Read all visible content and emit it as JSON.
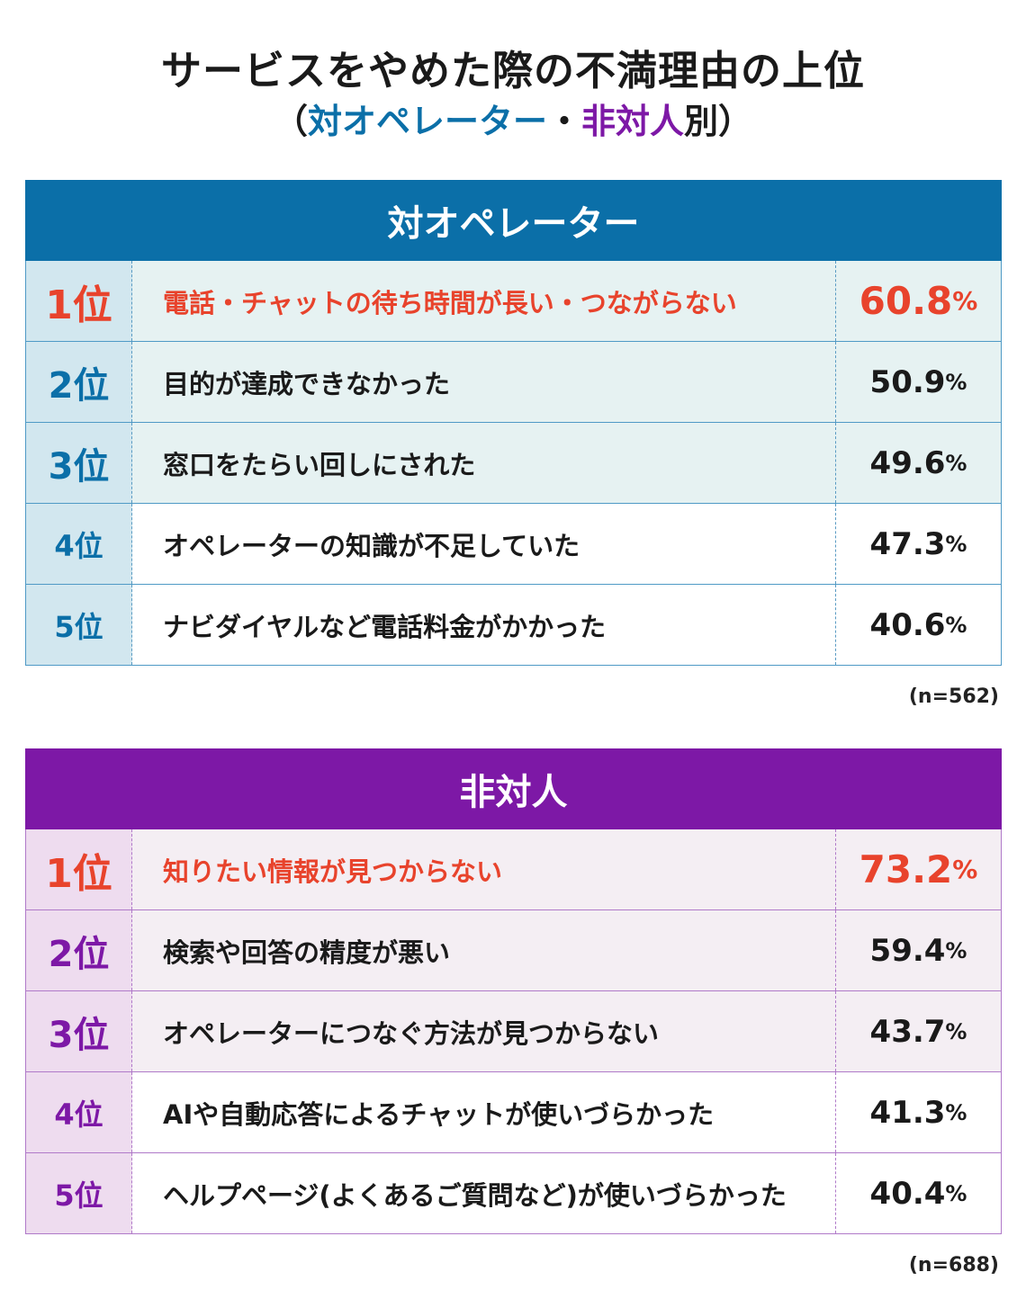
{
  "title": "サービスをやめた際の不満理由の上位",
  "subtitle": {
    "open": "（",
    "part1": "対オペレーター",
    "sep": "・",
    "part2": "非対人",
    "suffix": "別）"
  },
  "colors": {
    "operator": "#0b6fa8",
    "non_person": "#7d18a6",
    "highlight": "#e8432c"
  },
  "chart_data": [
    {
      "type": "table",
      "title": "対オペレーター",
      "columns": [
        "rank",
        "reason",
        "percent"
      ],
      "rows": [
        {
          "rank": "1位",
          "label": "電話・チャットの待ち時間が長い・つながらない",
          "value": 60.8
        },
        {
          "rank": "2位",
          "label": "目的が達成できなかった",
          "value": 50.9
        },
        {
          "rank": "3位",
          "label": "窓口をたらい回しにされた",
          "value": 49.6
        },
        {
          "rank": "4位",
          "label": "オペレーターの知識が不足していた",
          "value": 47.3
        },
        {
          "rank": "5位",
          "label": "ナビダイヤルなど電話料金がかかった",
          "value": 40.6
        }
      ],
      "unit": "%",
      "note": "(n=562)"
    },
    {
      "type": "table",
      "title": "非対人",
      "columns": [
        "rank",
        "reason",
        "percent"
      ],
      "rows": [
        {
          "rank": "1位",
          "label": "知りたい情報が見つからない",
          "value": 73.2
        },
        {
          "rank": "2位",
          "label": "検索や回答の精度が悪い",
          "value": 59.4
        },
        {
          "rank": "3位",
          "label": "オペレーターにつなぐ方法が見つからない",
          "value": 43.7
        },
        {
          "rank": "4位",
          "label": "AIや自動応答によるチャットが使いづらかった",
          "value": 41.3
        },
        {
          "rank": "5位",
          "label": "ヘルプページ(よくあるご質問など)が使いづらかった",
          "value": 40.4
        }
      ],
      "unit": "%",
      "note": "(n=688)"
    }
  ]
}
